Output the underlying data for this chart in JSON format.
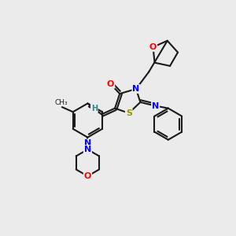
{
  "background_color": "#ebebeb",
  "bond_color": "#1a1a1a",
  "atom_colors": {
    "O": "#ff0000",
    "N": "#0000ff",
    "S": "#999900",
    "H": "#2e8b8b",
    "C": "#1a1a1a"
  }
}
